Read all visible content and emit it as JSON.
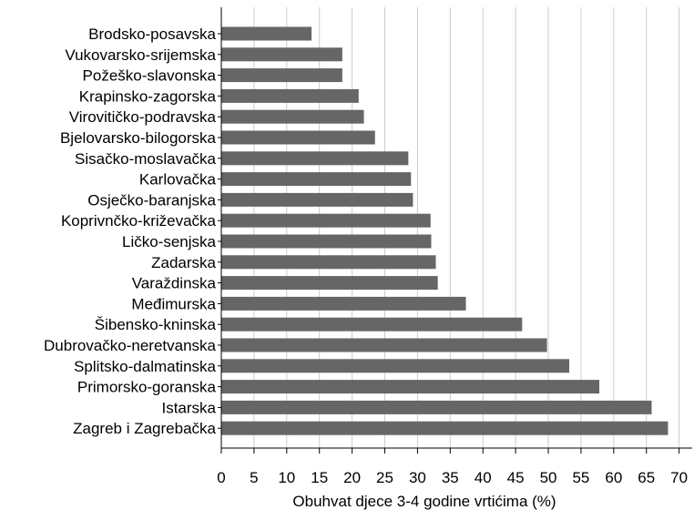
{
  "chart_data": {
    "type": "bar",
    "orientation": "horizontal",
    "categories": [
      "Brodsko-posavska",
      "Vukovarsko-srijemska",
      "Požeško-slavonska",
      "Krapinsko-zagorska",
      "Virovitičko-podravska",
      "Bjelovarsko-bilogorska",
      "Sisačko-moslavačka",
      "Karlovačka",
      "Osječko-baranjska",
      "Koprivnčko-križevačka",
      "Ličko-senjska",
      "Zadarska",
      "Varaždinska",
      "Međimurska",
      "Šibensko-kninska",
      "Dubrovačko-neretvanska",
      "Splitsko-dalmatinska",
      "Primorsko-goranska",
      "Istarska",
      "Zagreb i Zagrebačka"
    ],
    "values": [
      13.8,
      18.5,
      18.5,
      21.0,
      21.8,
      23.5,
      28.6,
      29.0,
      29.3,
      32.0,
      32.1,
      32.8,
      33.1,
      37.4,
      46.0,
      49.8,
      53.2,
      57.8,
      65.8,
      68.3
    ],
    "xlabel": "Obuhvat djece 3-4 godine vrtićima (%)",
    "xlim": [
      0,
      72
    ],
    "xticks": [
      "0",
      "5",
      "10",
      "15",
      "20",
      "25",
      "30",
      "35",
      "40",
      "45",
      "50",
      "55",
      "60",
      "65",
      "70"
    ],
    "grid": true,
    "bar_color": "#666666",
    "grid_color": "#cccccc"
  }
}
